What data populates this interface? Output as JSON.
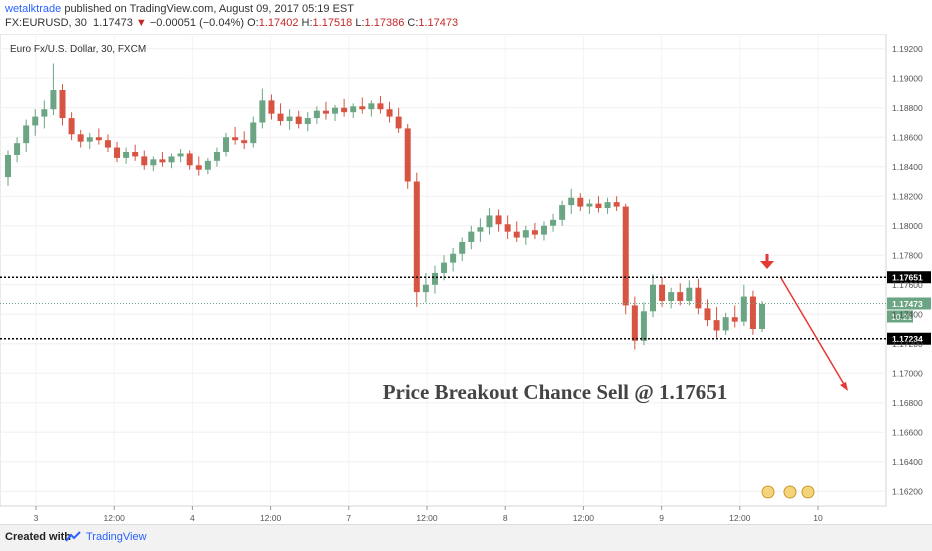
{
  "header": {
    "user": "wetalktrade",
    "published": " published on TradingView.com, August 09, 2017 05:19 EST",
    "symbol": "FX:EURUSD, 30",
    "last": "1.17473",
    "change_arrow": "▼",
    "change": "−0.00051 (−0.04%)",
    "o_label": "O:",
    "o_val": "1.17402",
    "h_label": "H:",
    "h_val": "1.17518",
    "l_label": "L:",
    "l_val": "1.17386",
    "c_label": "C:",
    "c_val": "1.17473"
  },
  "footer": {
    "created": "Created with",
    "brand": "TradingView"
  },
  "chart_data": {
    "type": "candlestick",
    "title": "Euro Fx/U.S. Dollar, 30, FXCM",
    "annotation": "Price Breakout Chance Sell @ 1.17651",
    "ylim": [
      1.161,
      1.193
    ],
    "y_ticks": [
      "1.19200",
      "1.19000",
      "1.18800",
      "1.18600",
      "1.18400",
      "1.18200",
      "1.18000",
      "1.17800",
      "1.17600",
      "1.17400",
      "1.17200",
      "1.17000",
      "1.16800",
      "1.16600",
      "1.16400",
      "1.16200"
    ],
    "x_tick_labels": [
      "3",
      "12:00",
      "4",
      "12:00",
      "7",
      "12:00",
      "8",
      "12:00",
      "9",
      "12:00",
      "10"
    ],
    "levels": [
      {
        "label": "1.17651",
        "value": 1.17651,
        "style": "dotted-black"
      },
      {
        "label": "1.17234",
        "value": 1.17234,
        "style": "dotted-black"
      },
      {
        "label": "1.17473",
        "value": 1.17473,
        "style": "dotted-green",
        "sub": "10:21"
      }
    ],
    "colors": {
      "up": "#6ba583",
      "down": "#d75442",
      "last": "#6ba583",
      "level": "#000000",
      "arrow": "#e53935"
    },
    "candles": [
      [
        1.1833,
        1.1851,
        1.1827,
        1.1848
      ],
      [
        1.1848,
        1.186,
        1.1843,
        1.1856
      ],
      [
        1.1856,
        1.1872,
        1.185,
        1.1868
      ],
      [
        1.1868,
        1.1879,
        1.1861,
        1.1874
      ],
      [
        1.1874,
        1.1885,
        1.1866,
        1.1879
      ],
      [
        1.1879,
        1.191,
        1.1875,
        1.1892
      ],
      [
        1.1892,
        1.1896,
        1.1868,
        1.1873
      ],
      [
        1.1873,
        1.1877,
        1.1858,
        1.1862
      ],
      [
        1.1862,
        1.1865,
        1.1853,
        1.1857
      ],
      [
        1.1857,
        1.1863,
        1.1852,
        1.186
      ],
      [
        1.186,
        1.1866,
        1.1855,
        1.1858
      ],
      [
        1.1858,
        1.1862,
        1.185,
        1.1853
      ],
      [
        1.1853,
        1.1857,
        1.1843,
        1.1846
      ],
      [
        1.1846,
        1.1853,
        1.1842,
        1.185
      ],
      [
        1.185,
        1.1855,
        1.1844,
        1.1847
      ],
      [
        1.1847,
        1.1851,
        1.1838,
        1.1841
      ],
      [
        1.1841,
        1.1847,
        1.1837,
        1.1845
      ],
      [
        1.1845,
        1.185,
        1.184,
        1.1843
      ],
      [
        1.1843,
        1.1849,
        1.1839,
        1.1847
      ],
      [
        1.1847,
        1.1852,
        1.1843,
        1.1849
      ],
      [
        1.1849,
        1.1851,
        1.1838,
        1.1841
      ],
      [
        1.1841,
        1.1847,
        1.1834,
        1.1838
      ],
      [
        1.1838,
        1.1846,
        1.1835,
        1.1844
      ],
      [
        1.1844,
        1.1853,
        1.184,
        1.185
      ],
      [
        1.185,
        1.1863,
        1.1847,
        1.186
      ],
      [
        1.186,
        1.1867,
        1.1855,
        1.1858
      ],
      [
        1.1858,
        1.1864,
        1.1852,
        1.1856
      ],
      [
        1.1856,
        1.1874,
        1.1853,
        1.187
      ],
      [
        1.187,
        1.1893,
        1.1866,
        1.1885
      ],
      [
        1.1885,
        1.1889,
        1.1872,
        1.1876
      ],
      [
        1.1876,
        1.1883,
        1.1868,
        1.1871
      ],
      [
        1.1871,
        1.1879,
        1.1865,
        1.1874
      ],
      [
        1.1874,
        1.1878,
        1.1866,
        1.1869
      ],
      [
        1.1869,
        1.1877,
        1.1864,
        1.1873
      ],
      [
        1.1873,
        1.1881,
        1.1869,
        1.1878
      ],
      [
        1.1878,
        1.1884,
        1.1872,
        1.1876
      ],
      [
        1.1876,
        1.1882,
        1.1871,
        1.188
      ],
      [
        1.188,
        1.1886,
        1.1874,
        1.1877
      ],
      [
        1.1877,
        1.1883,
        1.1873,
        1.1881
      ],
      [
        1.1881,
        1.1887,
        1.1876,
        1.1879
      ],
      [
        1.1879,
        1.1885,
        1.1874,
        1.1883
      ],
      [
        1.1883,
        1.1888,
        1.1876,
        1.1879
      ],
      [
        1.1879,
        1.1884,
        1.187,
        1.1874
      ],
      [
        1.1874,
        1.188,
        1.1863,
        1.1866
      ],
      [
        1.1866,
        1.1869,
        1.1825,
        1.183
      ],
      [
        1.183,
        1.1836,
        1.1745,
        1.1755
      ],
      [
        1.1755,
        1.1768,
        1.1748,
        1.176
      ],
      [
        1.176,
        1.1773,
        1.1754,
        1.1768
      ],
      [
        1.1768,
        1.178,
        1.1763,
        1.1775
      ],
      [
        1.1775,
        1.1785,
        1.1769,
        1.1781
      ],
      [
        1.1781,
        1.1792,
        1.1776,
        1.1789
      ],
      [
        1.1789,
        1.18,
        1.1784,
        1.1796
      ],
      [
        1.1796,
        1.1805,
        1.1789,
        1.1799
      ],
      [
        1.1799,
        1.1812,
        1.1794,
        1.1807
      ],
      [
        1.1807,
        1.1811,
        1.1796,
        1.1801
      ],
      [
        1.1801,
        1.1807,
        1.1791,
        1.1796
      ],
      [
        1.1796,
        1.1803,
        1.1789,
        1.1792
      ],
      [
        1.1792,
        1.18,
        1.1787,
        1.1797
      ],
      [
        1.1797,
        1.1802,
        1.1791,
        1.1794
      ],
      [
        1.1794,
        1.1803,
        1.179,
        1.18
      ],
      [
        1.18,
        1.1808,
        1.1796,
        1.1804
      ],
      [
        1.1804,
        1.1817,
        1.18,
        1.1814
      ],
      [
        1.1814,
        1.1825,
        1.1808,
        1.1819
      ],
      [
        1.1819,
        1.1822,
        1.181,
        1.1813
      ],
      [
        1.1813,
        1.1818,
        1.1808,
        1.1815
      ],
      [
        1.1815,
        1.182,
        1.1809,
        1.1812
      ],
      [
        1.1812,
        1.1819,
        1.1808,
        1.1816
      ],
      [
        1.1816,
        1.182,
        1.181,
        1.1813
      ],
      [
        1.1813,
        1.1815,
        1.174,
        1.1746
      ],
      [
        1.1746,
        1.1752,
        1.1716,
        1.1722
      ],
      [
        1.1722,
        1.1748,
        1.1719,
        1.1742
      ],
      [
        1.1742,
        1.1767,
        1.1738,
        1.176
      ],
      [
        1.176,
        1.1765,
        1.1745,
        1.1749
      ],
      [
        1.1749,
        1.1758,
        1.1744,
        1.1755
      ],
      [
        1.1755,
        1.1761,
        1.1746,
        1.1749
      ],
      [
        1.1749,
        1.1763,
        1.1746,
        1.1758
      ],
      [
        1.1758,
        1.1764,
        1.174,
        1.1744
      ],
      [
        1.1744,
        1.175,
        1.1732,
        1.1736
      ],
      [
        1.1736,
        1.1745,
        1.1723,
        1.1729
      ],
      [
        1.1729,
        1.1741,
        1.1726,
        1.1738
      ],
      [
        1.1738,
        1.1746,
        1.1731,
        1.1735
      ],
      [
        1.1735,
        1.176,
        1.1732,
        1.1752
      ],
      [
        1.1752,
        1.1756,
        1.1726,
        1.173
      ],
      [
        1.173,
        1.1749,
        1.1728,
        1.1747
      ]
    ]
  }
}
